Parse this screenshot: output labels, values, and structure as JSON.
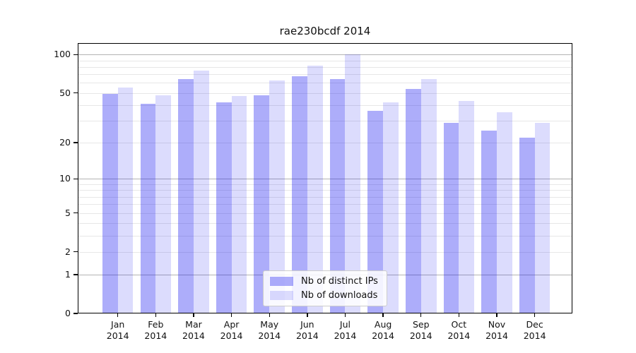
{
  "chart_data": {
    "type": "bar",
    "title": "rae230bcdf 2014",
    "categories": [
      "Jan",
      "Feb",
      "Mar",
      "Apr",
      "May",
      "Jun",
      "Jul",
      "Aug",
      "Sep",
      "Oct",
      "Nov",
      "Dec"
    ],
    "category_year": "2014",
    "series": [
      {
        "name": "Nb of distinct IPs",
        "color": "rgba(20,20,240,0.35)",
        "values": [
          49,
          41,
          64,
          42,
          48,
          68,
          64,
          36,
          54,
          29,
          25,
          22
        ]
      },
      {
        "name": "Nb of downloads",
        "color": "rgba(20,20,240,0.15)",
        "values": [
          55,
          48,
          75,
          47,
          63,
          82,
          100,
          42,
          64,
          43,
          35,
          29
        ]
      }
    ],
    "y_axis": {
      "scale": "log10(1+v)",
      "ticks": [
        0,
        1,
        2,
        5,
        10,
        20,
        50,
        100
      ],
      "tick_labels": [
        "0",
        "1",
        "2",
        "5",
        "10",
        "20",
        "50",
        "100"
      ],
      "major_gridlines": [
        1,
        10,
        100
      ],
      "minor_gridlines": [
        2,
        3,
        4,
        5,
        6,
        7,
        8,
        9,
        20,
        30,
        40,
        50,
        60,
        70,
        80,
        90
      ],
      "max": 123
    },
    "xlabel": "",
    "ylabel": "",
    "grid": true,
    "legend": {
      "position": "lower center",
      "entries": [
        "Nb of distinct IPs",
        "Nb of downloads"
      ]
    },
    "colors": {
      "major_grid": "#b3b3b3",
      "minor_grid": "#e7e7e7",
      "spine": "#000000",
      "background": "#ffffff",
      "text": "#111111"
    }
  }
}
